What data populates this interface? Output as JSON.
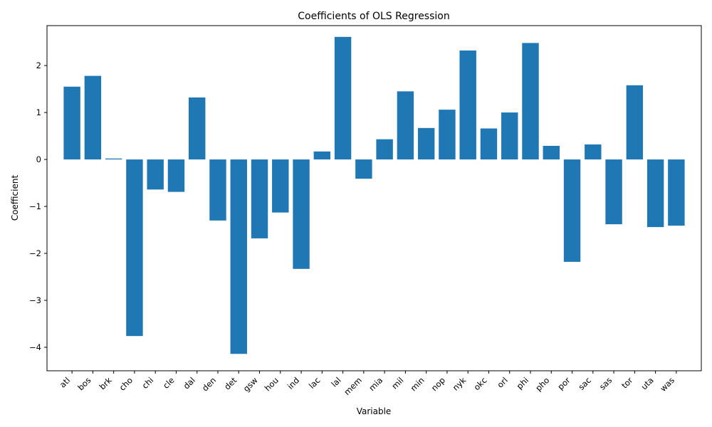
{
  "chart_data": {
    "type": "bar",
    "title": "Coefficients of OLS Regression",
    "xlabel": "Variable",
    "ylabel": "Coefficient",
    "ylim": [
      -4.5,
      2.85
    ],
    "yticks": [
      -4,
      -3,
      -2,
      -1,
      0,
      1,
      2
    ],
    "grid": false,
    "bar_color": "#1f77b4",
    "categories": [
      "atl",
      "bos",
      "brk",
      "cho",
      "chi",
      "cle",
      "dal",
      "den",
      "det",
      "gsw",
      "hou",
      "ind",
      "lac",
      "lal",
      "mem",
      "mia",
      "mil",
      "min",
      "nop",
      "nyk",
      "okc",
      "orl",
      "phi",
      "pho",
      "por",
      "sac",
      "sas",
      "tor",
      "uta",
      "was"
    ],
    "values": [
      1.55,
      1.78,
      0.02,
      -3.76,
      -0.64,
      -0.69,
      1.32,
      -1.3,
      -4.14,
      -1.68,
      -1.13,
      -2.33,
      0.17,
      2.61,
      -0.41,
      0.43,
      1.45,
      0.67,
      1.06,
      2.32,
      0.66,
      1.0,
      2.48,
      0.29,
      -2.18,
      0.32,
      -1.38,
      1.58,
      -1.44,
      -1.41
    ]
  }
}
